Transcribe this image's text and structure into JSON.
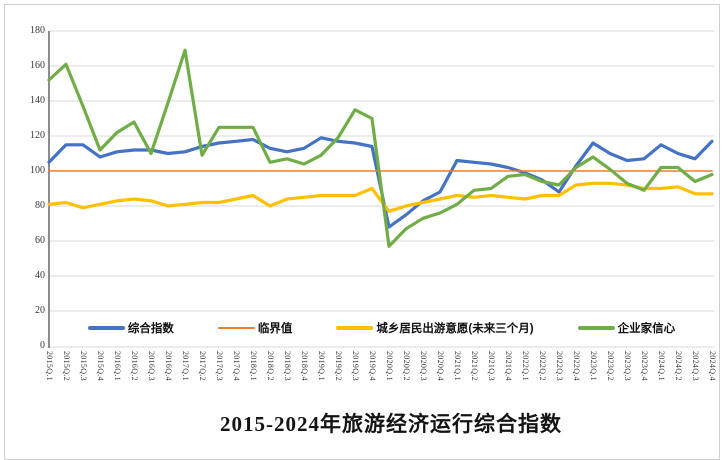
{
  "chart_data": {
    "type": "line",
    "title": "2015-2024年旅游经济运行综合指数",
    "xlabel": "",
    "ylabel": "",
    "ylim": [
      0,
      180
    ],
    "ytick_step": 20,
    "grid": true,
    "legend_position": "bottom",
    "categories": [
      "2015Q.1",
      "2015Q.2",
      "2015Q.3",
      "2015Q.4",
      "2016Q.1",
      "2016Q.2",
      "2016Q.3",
      "2016Q.4",
      "2017Q.1",
      "2017Q.2",
      "2017Q.3",
      "2017Q.4",
      "2018Q.1",
      "2018Q.2",
      "2018Q.3",
      "2018Q.4",
      "2019Q.1",
      "2019Q.2",
      "2019Q.3",
      "2019Q.4",
      "2020Q.1",
      "2020Q.2",
      "2020Q.3",
      "2020Q.4",
      "2021Q.1",
      "2021Q.2",
      "2021Q.3",
      "2021Q.4",
      "2022Q.1",
      "2022Q.2",
      "2022Q.3",
      "2022Q.4",
      "2023Q.1",
      "2023Q.2",
      "2023Q.3",
      "2023Q.4",
      "2024Q.1",
      "2024Q.2",
      "2024Q.3",
      "2024Q.4"
    ],
    "series": [
      {
        "name": "综合指数",
        "key": "composite-index",
        "color": "#4472C4",
        "line_width": 3.2,
        "values": [
          105,
          115,
          115,
          108,
          111,
          112,
          112,
          110,
          111,
          114,
          116,
          117,
          118,
          113,
          111,
          113,
          119,
          117,
          116,
          114,
          68,
          75,
          83,
          88,
          106,
          105,
          104,
          102,
          99,
          95,
          88,
          103,
          116,
          110,
          106,
          107,
          115,
          110,
          107,
          117
        ]
      },
      {
        "name": "临界值",
        "key": "critical-value",
        "color": "#ED7D31",
        "line_width": 1.6,
        "constant": 100
      },
      {
        "name": "城乡居民出游意愿(未来三个月)",
        "key": "travel-willingness",
        "color": "#FFC000",
        "line_width": 3.2,
        "values": [
          81,
          82,
          79,
          81,
          83,
          84,
          83,
          80,
          81,
          82,
          82,
          84,
          86,
          80,
          84,
          85,
          86,
          86,
          86,
          90,
          77,
          80,
          82,
          84,
          86,
          85,
          86,
          85,
          84,
          86,
          86,
          92,
          93,
          93,
          92,
          90,
          90,
          91,
          87,
          87
        ]
      },
      {
        "name": "企业家信心",
        "key": "entrepreneur-confidence",
        "color": "#70AD47",
        "line_width": 3.2,
        "values": [
          152,
          161,
          137,
          112,
          122,
          128,
          110,
          139,
          169,
          109,
          125,
          125,
          125,
          105,
          107,
          104,
          109,
          119,
          135,
          130,
          57,
          67,
          73,
          76,
          81,
          89,
          90,
          97,
          98,
          94,
          92,
          102,
          108,
          101,
          93,
          89,
          102,
          102,
          94,
          98
        ]
      }
    ],
    "gridline_color": "#d9d9d9",
    "axis_line_color": "#808080",
    "plot_background": "#ffffff"
  }
}
